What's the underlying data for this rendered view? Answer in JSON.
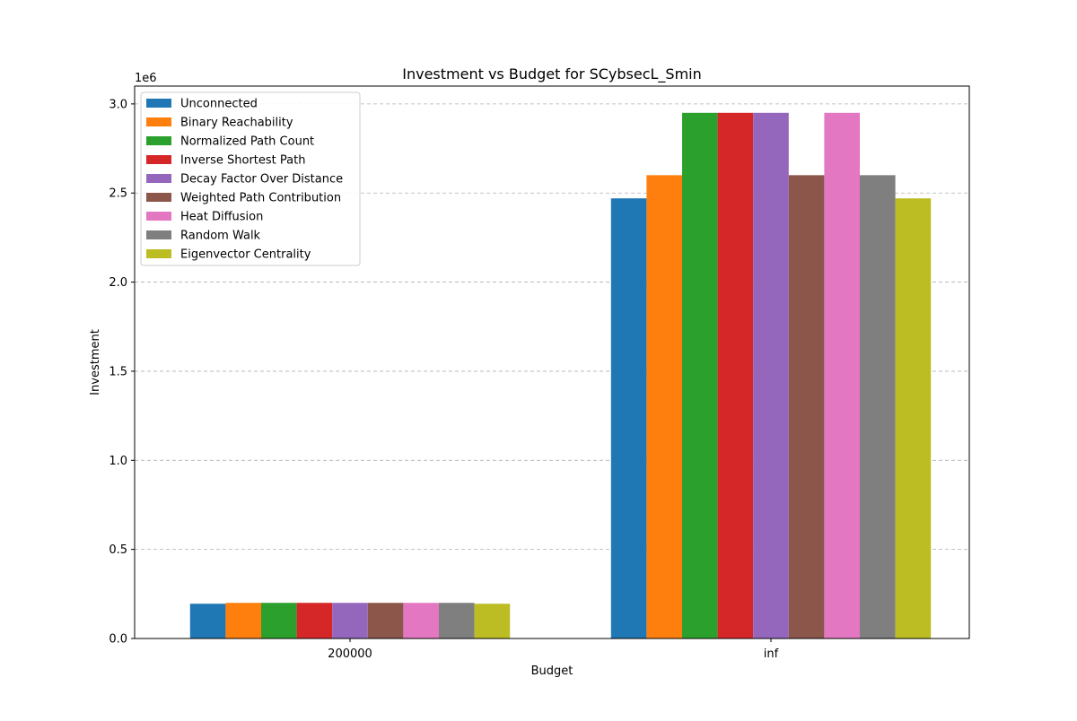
{
  "chart_data": {
    "type": "bar",
    "title": "Investment vs Budget for SCybsecL_Smin",
    "xlabel": "Budget",
    "ylabel": "Investment",
    "y_scale_label": "1e6",
    "categories": [
      "200000",
      "inf"
    ],
    "ylim": [
      0,
      3100000
    ],
    "yticks": [
      0,
      500000,
      1000000,
      1500000,
      2000000,
      2500000,
      3000000
    ],
    "ytick_labels": [
      "0.0",
      "0.5",
      "1.0",
      "1.5",
      "2.0",
      "2.5",
      "3.0"
    ],
    "grid": "horizontal dashed",
    "legend_position": "top-left",
    "series": [
      {
        "name": "Unconnected",
        "color": "#1f77b4",
        "values": [
          195000,
          2470000
        ]
      },
      {
        "name": "Binary Reachability",
        "color": "#ff7f0e",
        "values": [
          200000,
          2600000
        ]
      },
      {
        "name": "Normalized Path Count",
        "color": "#2ca02c",
        "values": [
          200000,
          2950000
        ]
      },
      {
        "name": "Inverse Shortest Path",
        "color": "#d62728",
        "values": [
          200000,
          2950000
        ]
      },
      {
        "name": "Decay Factor Over Distance",
        "color": "#9467bd",
        "values": [
          200000,
          2950000
        ]
      },
      {
        "name": "Weighted Path Contribution",
        "color": "#8c564b",
        "values": [
          200000,
          2600000
        ]
      },
      {
        "name": "Heat Diffusion",
        "color": "#e377c2",
        "values": [
          200000,
          2950000
        ]
      },
      {
        "name": "Random Walk",
        "color": "#7f7f7f",
        "values": [
          200000,
          2600000
        ]
      },
      {
        "name": "Eigenvector Centrality",
        "color": "#bcbd22",
        "values": [
          195000,
          2470000
        ]
      }
    ]
  }
}
